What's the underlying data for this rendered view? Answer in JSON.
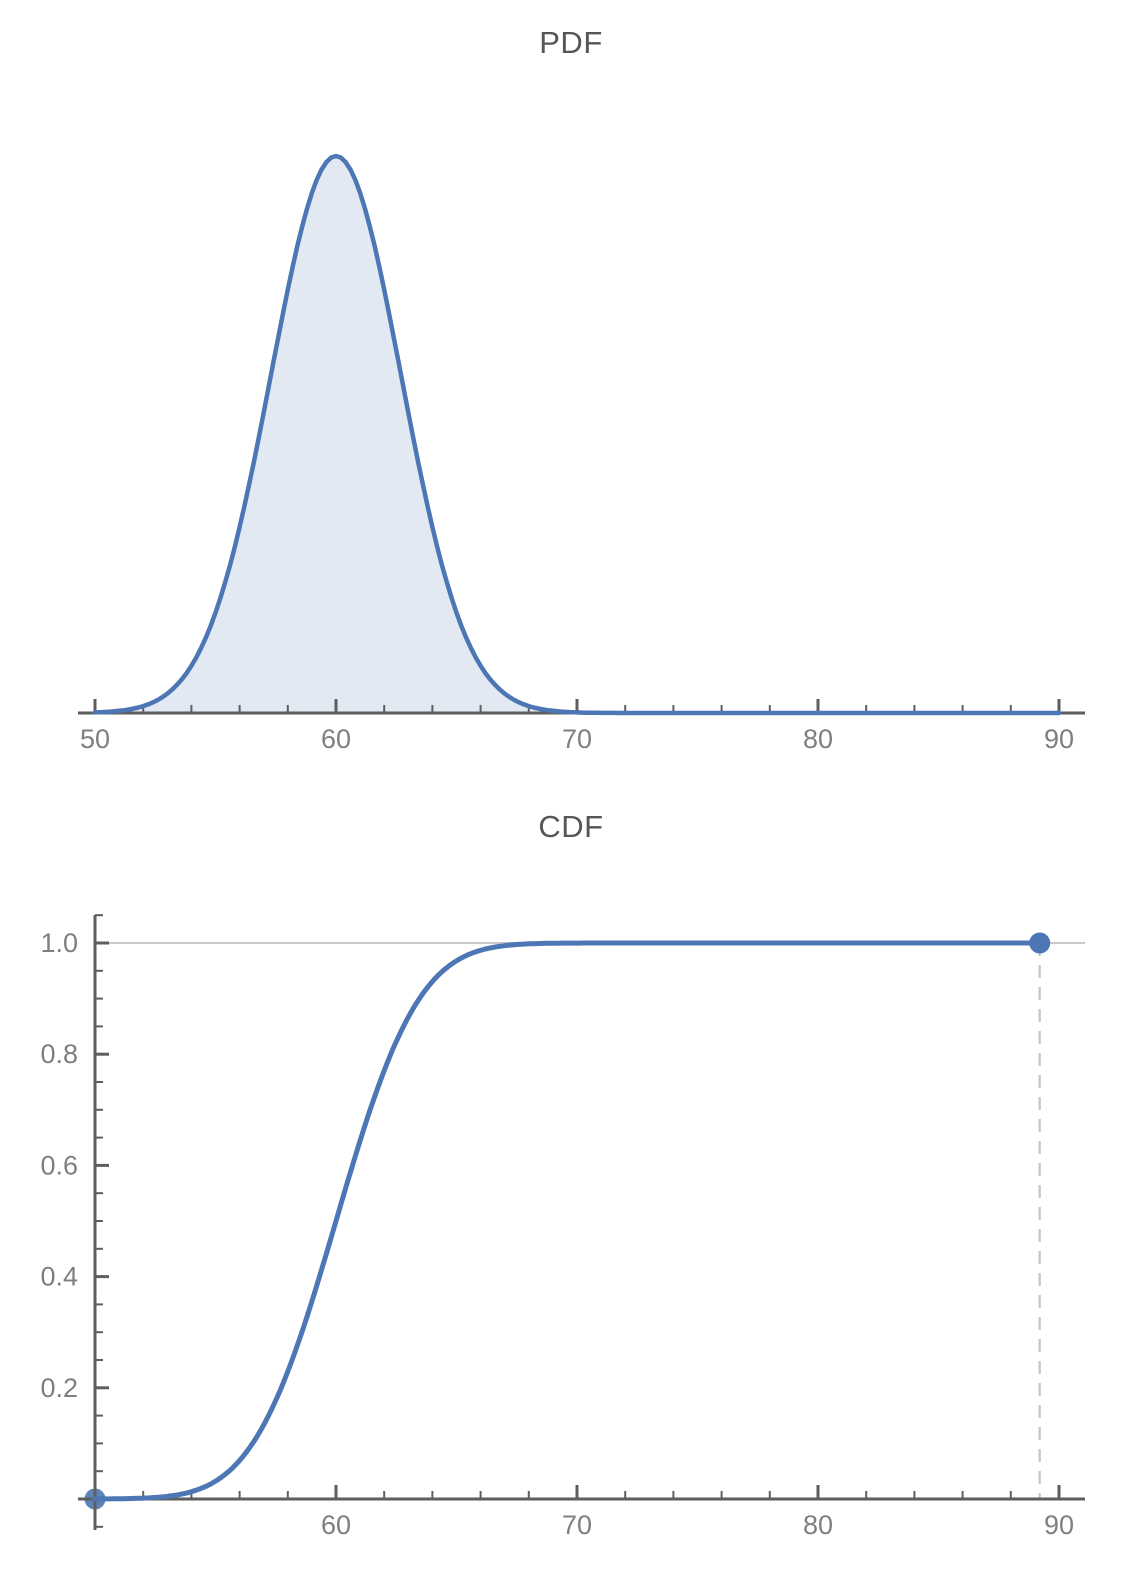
{
  "style": {
    "accent": "#4c76b4",
    "area_fill": "rgba(76,118,180,0.16)",
    "axis_color": "#5e5e5e",
    "tick_label_color": "#7f7f7f",
    "title_color": "#565656",
    "gridline_color": "#c9c9c9",
    "dashed_line_color": "#c5c5c5",
    "background": "#ffffff"
  },
  "chart_data": [
    {
      "id": "pdf",
      "type": "area",
      "title": "PDF",
      "distribution": {
        "family": "normal",
        "mean": 60,
        "std_dev": 2.7
      },
      "x_axis": {
        "range_shown": [
          50,
          90
        ],
        "tick_values": [
          50,
          60,
          70,
          80,
          90
        ],
        "tick_labels": [
          "50",
          "60",
          "70",
          "80",
          "90"
        ],
        "minor_tick_step": 2
      },
      "y_axis": {
        "shown": false,
        "max_value": 0.1478
      },
      "curve_domain": [
        50,
        90
      ],
      "peak": {
        "x": 60,
        "y": 0.1478
      },
      "grid": false,
      "legend": "none",
      "points": {
        "x": [
          50,
          51,
          52,
          53,
          54,
          55,
          56,
          57,
          58,
          59,
          60,
          61,
          62,
          63,
          64,
          65,
          66,
          67,
          68,
          69,
          70,
          80,
          90
        ],
        "y": [
          0.00016,
          0.00057,
          0.00184,
          0.00513,
          0.01251,
          0.0266,
          0.04931,
          0.0797,
          0.11235,
          0.13797,
          0.14776,
          0.13797,
          0.11235,
          0.0797,
          0.04931,
          0.0266,
          0.01251,
          0.00513,
          0.00184,
          0.00057,
          0.00016,
          0.0,
          0.0
        ]
      }
    },
    {
      "id": "cdf",
      "type": "line",
      "title": "CDF",
      "distribution": {
        "family": "normal",
        "mean": 60,
        "std_dev": 2.7
      },
      "x_axis": {
        "range_shown": [
          50,
          90
        ],
        "tick_values": [
          60,
          70,
          80,
          90
        ],
        "tick_labels": [
          "60",
          "70",
          "80",
          "90"
        ],
        "minor_tick_step": 2
      },
      "y_axis": {
        "shown": true,
        "range": [
          0,
          1.05
        ],
        "tick_values": [
          0.2,
          0.4,
          0.6,
          0.8,
          1.0
        ],
        "tick_labels": [
          "0.2",
          "0.4",
          "0.6",
          "0.8",
          "1.0"
        ],
        "minor_tick_step": 0.05
      },
      "curve_domain": [
        50,
        89.2
      ],
      "markers": [
        {
          "x": 50,
          "y": 0
        },
        {
          "x": 89.2,
          "y": 1
        }
      ],
      "dashed_guide_x": 89.2,
      "top_gridline_y": 1.0,
      "grid": "single horizontal line at y=1.0",
      "legend": "none",
      "points": {
        "x": [
          50,
          52,
          54,
          55,
          56,
          57,
          58,
          59,
          60,
          61,
          62,
          63,
          64,
          65,
          66,
          67,
          68,
          70,
          75,
          80,
          85,
          89.2
        ],
        "y": [
          0.0001,
          0.0015,
          0.0131,
          0.032,
          0.0693,
          0.1333,
          0.2294,
          0.3557,
          0.5,
          0.6443,
          0.7706,
          0.8667,
          0.9307,
          0.968,
          0.9869,
          0.9955,
          0.9987,
          0.9999,
          1.0,
          1.0,
          1.0,
          1.0
        ]
      }
    }
  ]
}
